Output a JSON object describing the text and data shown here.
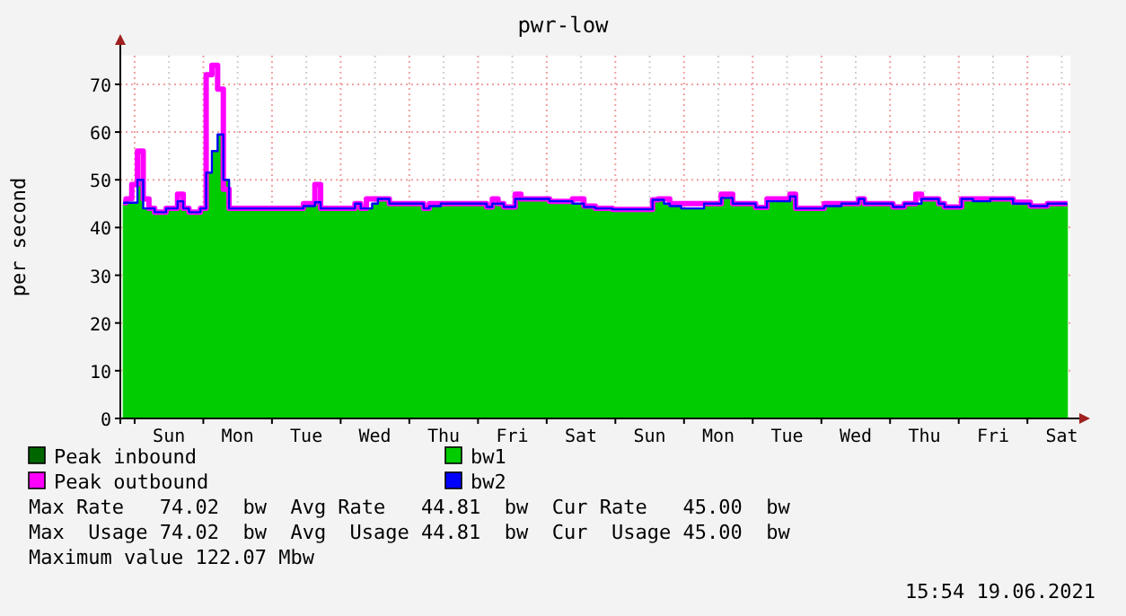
{
  "chart_data": {
    "type": "step",
    "title": "pwr-low",
    "ylabel": "per second",
    "categories": [
      null,
      null,
      null,
      null,
      null,
      null,
      null,
      null,
      "Sun",
      null,
      null,
      null,
      null,
      null,
      null,
      null,
      null,
      null,
      null,
      null,
      "Mon",
      null,
      null,
      null,
      null,
      null,
      null,
      null,
      null,
      null,
      null,
      null,
      "Tue",
      null,
      null,
      null,
      null,
      null,
      null,
      null,
      null,
      null,
      null,
      null,
      "Wed",
      null,
      null,
      null,
      null,
      null,
      null,
      null,
      null,
      null,
      null,
      null,
      "Thu",
      null,
      null,
      null,
      null,
      null,
      null,
      null,
      null,
      null,
      null,
      null,
      "Fri",
      null,
      null,
      null,
      null,
      null,
      null,
      null,
      null,
      null,
      null,
      null,
      "Sat",
      null,
      null,
      null,
      null,
      null,
      null,
      null,
      null,
      null,
      null,
      null,
      "Sun",
      null,
      null,
      null,
      null,
      null,
      null,
      null,
      null,
      null,
      null,
      null,
      "Mon",
      null,
      null,
      null,
      null,
      null,
      null,
      null,
      null,
      null,
      null,
      null,
      "Tue",
      null,
      null,
      null,
      null,
      null,
      null,
      null,
      null,
      null,
      null,
      null,
      "Wed",
      null,
      null,
      null,
      null,
      null,
      null,
      null,
      null,
      null,
      null,
      null,
      "Thu",
      null,
      null,
      null,
      null,
      null,
      null,
      null,
      null,
      null,
      null,
      null,
      "Fri",
      null,
      null,
      null,
      null,
      null,
      null,
      null,
      null,
      null,
      null,
      null,
      "Sat",
      null
    ],
    "ylim": [
      0,
      76
    ],
    "yticks": [
      0,
      10,
      20,
      30,
      40,
      50,
      60,
      70
    ],
    "grid": true,
    "legend": "bottom",
    "series": [
      {
        "name": "Peak inbound",
        "color": "#006600",
        "values": [
          null,
          null,
          null,
          null,
          null,
          null,
          null,
          null,
          null,
          null,
          null,
          null,
          null,
          null,
          null,
          null,
          null,
          null,
          null,
          null,
          null,
          null,
          null,
          null,
          null,
          null,
          null,
          null,
          null,
          null,
          null,
          null,
          null,
          null,
          null,
          null,
          null,
          null,
          null,
          null,
          null,
          null,
          null,
          null,
          null,
          null,
          null,
          null,
          null,
          null,
          null,
          null,
          null,
          null,
          null,
          null,
          null,
          null,
          null,
          null,
          null,
          null,
          null,
          null,
          null,
          null,
          null,
          null,
          null,
          null,
          null,
          null,
          null,
          null,
          null,
          null,
          null,
          null,
          null,
          null,
          null,
          null,
          null,
          null,
          null,
          null,
          null,
          null,
          null,
          null,
          null,
          null,
          null,
          null,
          null,
          null,
          null,
          null,
          null,
          null,
          null,
          null,
          null,
          null,
          null,
          null,
          null,
          null,
          null,
          null,
          null,
          null,
          null,
          null,
          null,
          null,
          null,
          null,
          null,
          null,
          null,
          null,
          null,
          null,
          null,
          null,
          null,
          null,
          null,
          null,
          null,
          null,
          null,
          null,
          null,
          null,
          null,
          null,
          null,
          null,
          null,
          null,
          null,
          null,
          null,
          null,
          null,
          null,
          null,
          null,
          null,
          null,
          null,
          null,
          null,
          null,
          null,
          null,
          null,
          null,
          null,
          null,
          null,
          null,
          null,
          null
        ]
      },
      {
        "name": "bw1",
        "color": "#00cc00",
        "type": "area",
        "values": [
          45.2,
          45.2,
          45.2,
          50,
          44,
          44,
          43.2,
          43.2,
          44,
          44,
          45.5,
          44,
          43.2,
          43.2,
          44,
          51.5,
          56,
          59.5,
          50,
          44,
          44,
          44,
          44,
          44,
          44,
          44,
          44,
          44,
          44,
          44,
          44,
          44,
          44.5,
          44.5,
          45.3,
          44,
          44,
          44,
          44,
          44,
          44,
          45,
          44,
          44,
          45,
          46,
          46,
          45,
          45,
          45,
          45,
          45,
          45,
          44,
          44.5,
          44.5,
          45,
          45,
          45,
          45,
          45,
          45,
          45,
          45,
          44.3,
          45,
          45,
          44.3,
          44.3,
          46,
          46,
          46,
          46,
          46,
          46,
          45.5,
          45.5,
          45.5,
          45.5,
          45,
          45,
          44.3,
          44.3,
          44,
          44,
          44,
          43.8,
          43.8,
          43.8,
          43.8,
          43.8,
          43.8,
          43.8,
          45.8,
          45.8,
          45,
          44.5,
          44.5,
          44,
          44,
          44,
          44,
          45,
          45,
          45,
          46.2,
          46.2,
          45,
          45,
          45,
          45,
          44.2,
          44.2,
          45.5,
          45.5,
          45.5,
          45.5,
          46.5,
          44,
          44,
          44,
          44,
          44,
          44.5,
          44.5,
          44.5,
          45,
          45,
          45,
          46,
          45,
          45,
          45,
          45,
          45,
          44.3,
          44.3,
          45,
          45,
          45,
          46,
          46,
          46,
          45,
          44.3,
          44.3,
          44.3,
          46,
          46,
          45.5,
          45.5,
          45.5,
          46,
          46,
          46,
          46,
          45,
          45,
          45,
          44.5,
          44.5,
          44.5,
          45,
          45,
          45,
          45
        ]
      },
      {
        "name": "Peak outbound",
        "color": "#ff00ff",
        "values": [
          45.2,
          46,
          49,
          56,
          46,
          44,
          43.2,
          43.2,
          44,
          44,
          47,
          44,
          43.2,
          43.2,
          44,
          72,
          74,
          69,
          48,
          44,
          44,
          44,
          44,
          44,
          44,
          44,
          44,
          44,
          44,
          44,
          44,
          44,
          45,
          45,
          49,
          44,
          44,
          44,
          44,
          44,
          44,
          45,
          44,
          46,
          46,
          46,
          46,
          45,
          45,
          45,
          45,
          45,
          45,
          44,
          45,
          45,
          45,
          45,
          45,
          45,
          45,
          45,
          45,
          45,
          44.3,
          46,
          45,
          44.3,
          44.3,
          47,
          46,
          46,
          46,
          46,
          46,
          45.5,
          45.5,
          45.5,
          45.5,
          46,
          46,
          44.5,
          44.5,
          44,
          44,
          44,
          43.8,
          43.8,
          43.8,
          43.8,
          43.8,
          43.8,
          43.8,
          45.8,
          46,
          46,
          45,
          45,
          45,
          45,
          45,
          45,
          45,
          45,
          45,
          47,
          47,
          45,
          45,
          45,
          45,
          44.2,
          44.2,
          46,
          46,
          46,
          46,
          47,
          44,
          44,
          44,
          44,
          44,
          45,
          45,
          45,
          45,
          45,
          45,
          46,
          45,
          45,
          45,
          45,
          45,
          44.3,
          44.3,
          45,
          45,
          47,
          46,
          46,
          46,
          45,
          44.3,
          44.3,
          44.3,
          46,
          46,
          46,
          46,
          46,
          46,
          46,
          46,
          46,
          45.3,
          45.3,
          45.3,
          44.5,
          44.5,
          44.5,
          45,
          45,
          45,
          45
        ]
      },
      {
        "name": "bw2",
        "color": "#0000ff",
        "values": [
          45.2,
          45.2,
          45.2,
          50,
          44,
          44,
          43.2,
          43.2,
          44,
          44,
          45.5,
          44,
          43.2,
          43.2,
          44,
          51.5,
          56,
          59.5,
          50,
          44,
          44,
          44,
          44,
          44,
          44,
          44,
          44,
          44,
          44,
          44,
          44,
          44,
          44.5,
          44.5,
          45.3,
          44,
          44,
          44,
          44,
          44,
          44,
          45,
          44,
          44,
          45,
          46,
          46,
          45,
          45,
          45,
          45,
          45,
          45,
          44,
          44.5,
          44.5,
          45,
          45,
          45,
          45,
          45,
          45,
          45,
          45,
          44.3,
          45,
          45,
          44.3,
          44.3,
          46,
          46,
          46,
          46,
          46,
          46,
          45.5,
          45.5,
          45.5,
          45.5,
          45,
          45,
          44.3,
          44.3,
          44,
          44,
          44,
          43.8,
          43.8,
          43.8,
          43.8,
          43.8,
          43.8,
          43.8,
          45.8,
          45.8,
          45,
          44.5,
          44.5,
          44,
          44,
          44,
          44,
          45,
          45,
          45,
          46.2,
          46.2,
          45,
          45,
          45,
          45,
          44.2,
          44.2,
          45.5,
          45.5,
          45.5,
          45.5,
          46.5,
          44,
          44,
          44,
          44,
          44,
          44.5,
          44.5,
          44.5,
          45,
          45,
          45,
          46,
          45,
          45,
          45,
          45,
          45,
          44.3,
          44.3,
          45,
          45,
          45,
          46,
          46,
          46,
          45,
          44.3,
          44.3,
          44.3,
          46,
          46,
          45.5,
          45.5,
          45.5,
          46,
          46,
          46,
          46,
          45,
          45,
          45,
          44.5,
          44.5,
          44.5,
          45,
          45,
          45,
          45
        ]
      }
    ],
    "annotations": [
      "Max Rate   74.02  bw  Avg Rate   44.81  bw  Cur Rate   45.00  bw",
      "Max  Usage 74.02  bw  Avg  Usage 44.81  bw  Cur  Usage 45.00  bw",
      "Maximum value 122.07 Mbw",
      "15:54 19.06.2021"
    ]
  }
}
